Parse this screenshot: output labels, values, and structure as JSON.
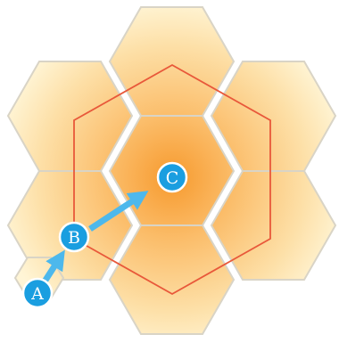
{
  "diagram": {
    "nodes": [
      {
        "id": "A",
        "label": "A"
      },
      {
        "id": "B",
        "label": "B"
      },
      {
        "id": "C",
        "label": "C"
      }
    ],
    "arrows": [
      {
        "from": "A",
        "to": "B"
      },
      {
        "from": "B",
        "to": "C"
      }
    ],
    "colors": {
      "hex_fill_outer": "#fff5d6",
      "hex_fill_inner": "#f79a2e",
      "hex_edge": "#d9d4c6",
      "big_hex_outline": "#e8583a",
      "node_fill": "#1a9ee0",
      "node_stroke": "#ffffff",
      "arrow": "#4db8ec"
    }
  }
}
